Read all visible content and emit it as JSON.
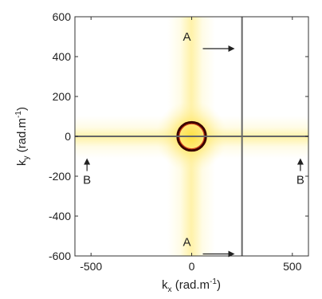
{
  "chart_data": {
    "type": "heatmap",
    "xlabel": "k",
    "xlabel_sub": "x",
    "xlabel_unit": "(rad.m",
    "xlabel_exp": "-1",
    "xlabel_close": ")",
    "ylabel": "k",
    "ylabel_sub": "y",
    "ylabel_unit": "(rad.m",
    "ylabel_exp": "-1",
    "ylabel_close": ")",
    "xlim": [
      -580,
      580
    ],
    "ylim": [
      -600,
      600
    ],
    "x_ticks": [
      -500,
      0,
      500
    ],
    "x_tick_labels": [
      "-500",
      "0",
      "500"
    ],
    "y_ticks": [
      600,
      400,
      200,
      0,
      -200,
      -400,
      -600
    ],
    "y_tick_labels": [
      "600",
      "400",
      "200",
      "0",
      "-200",
      "-400",
      "-600"
    ],
    "grid": false,
    "colormap": [
      "#ffffff",
      "#fff6a8",
      "#f5c800",
      "#e05a00",
      "#a00000",
      "#3a0000"
    ],
    "ring": {
      "cx": 0,
      "cy": 0,
      "radius": 70
    },
    "cut_lines": [
      {
        "name": "A",
        "orientation": "vertical",
        "k": 250
      },
      {
        "name": "B",
        "orientation": "horizontal",
        "k": 0
      }
    ],
    "annotations": [
      {
        "text": "A",
        "x": 0,
        "y": 500,
        "arrow": "right"
      },
      {
        "text": "A",
        "x": 0,
        "y": -530,
        "arrow": "right"
      },
      {
        "text": "B",
        "x": -520,
        "y": -190,
        "arrow": "up"
      },
      {
        "text": "B",
        "x": 540,
        "y": -190,
        "arrow": "up"
      }
    ]
  }
}
